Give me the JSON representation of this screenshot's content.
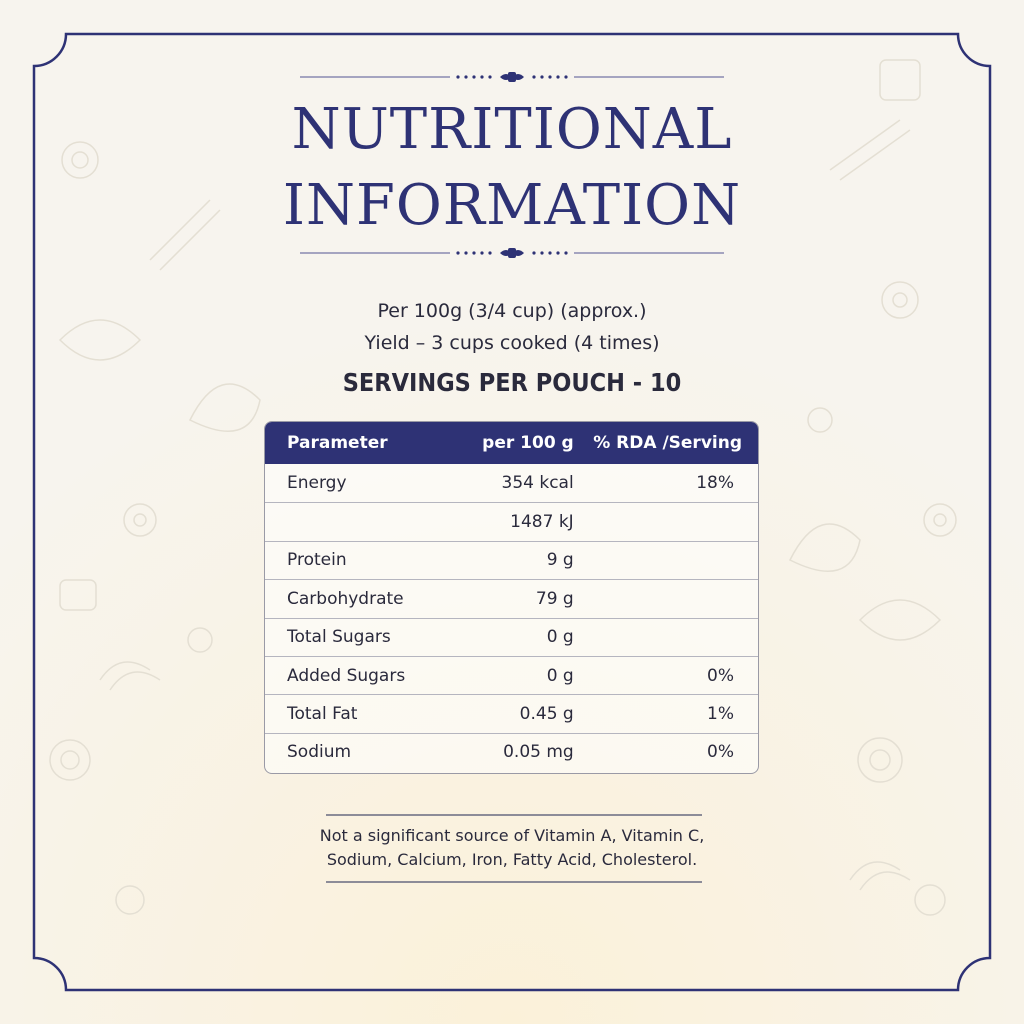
{
  "title": {
    "line1": "NUTRITIONAL",
    "line2": "INFORMATION"
  },
  "serving_info": {
    "per": "Per 100g (3/4 cup) (approx.)",
    "yield": "Yield – 3 cups cooked (4 times)",
    "servings": "SERVINGS PER POUCH - 10"
  },
  "table": {
    "headers": [
      "Parameter",
      "per 100 g",
      "% RDA /Serving"
    ],
    "rows": [
      [
        "Energy",
        "354 kcal",
        "18%"
      ],
      [
        "",
        "1487 kJ",
        ""
      ],
      [
        "Protein",
        "9 g",
        ""
      ],
      [
        "Carbohydrate",
        "79 g",
        ""
      ],
      [
        "Total Sugars",
        "0 g",
        ""
      ],
      [
        "Added Sugars",
        "0 g",
        "0%"
      ],
      [
        "Total Fat",
        "0.45 g",
        "1%"
      ],
      [
        "Sodium",
        "0.05 mg",
        "0%"
      ]
    ]
  },
  "footnote": {
    "line1": "Not a significant source of Vitamin A, Vitamin C,",
    "line2": "Sodium, Calcium, Iron, Fatty Acid, Cholesterol."
  },
  "colors": {
    "navy": "#2e3275",
    "background": "#f7f3ea",
    "text": "#2a2a3c"
  }
}
